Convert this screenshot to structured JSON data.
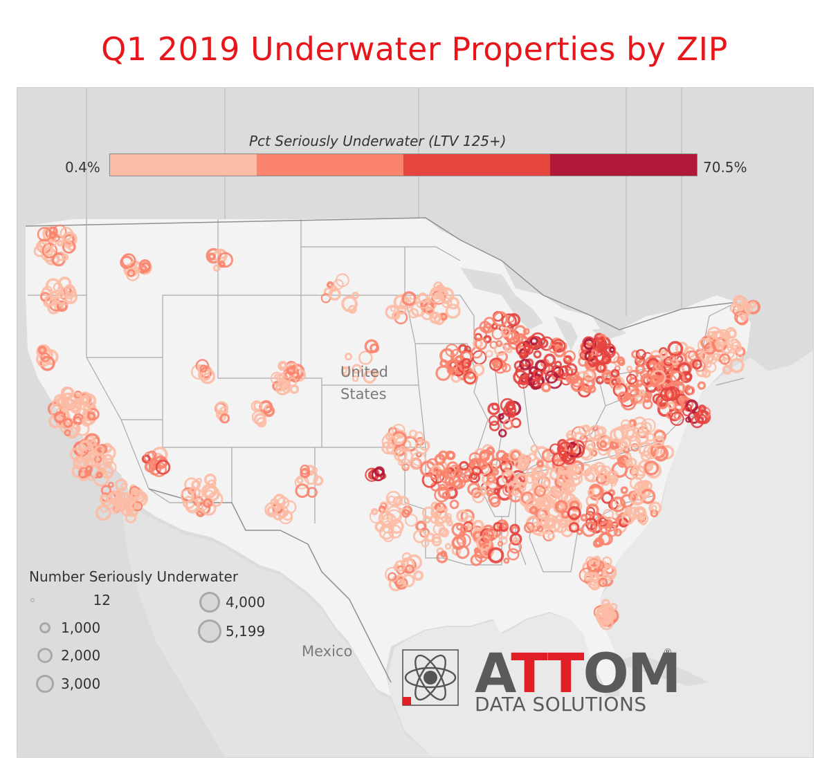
{
  "title": "Q1 2019 Underwater Properties by ZIP",
  "color_scale": {
    "title": "Pct Seriously Underwater (LTV 125+)",
    "min_label": "0.4%",
    "max_label": "70.5%",
    "colors": [
      "#fcbba4",
      "#f9836d",
      "#e5443f",
      "#b11737"
    ]
  },
  "places": {
    "country_label_1": "United",
    "country_label_2": "States",
    "mexico": "Mexico"
  },
  "size_legend": {
    "title": "Number Seriously Underwater",
    "entries": [
      "12",
      "1,000",
      "2,000",
      "3,000",
      "4,000",
      "5,199"
    ]
  },
  "logo": {
    "brand_a": "A",
    "brand_tt": "TT",
    "brand_om": "OM",
    "registered": "®",
    "subtitle": "DATA SOLUTIONS"
  }
}
